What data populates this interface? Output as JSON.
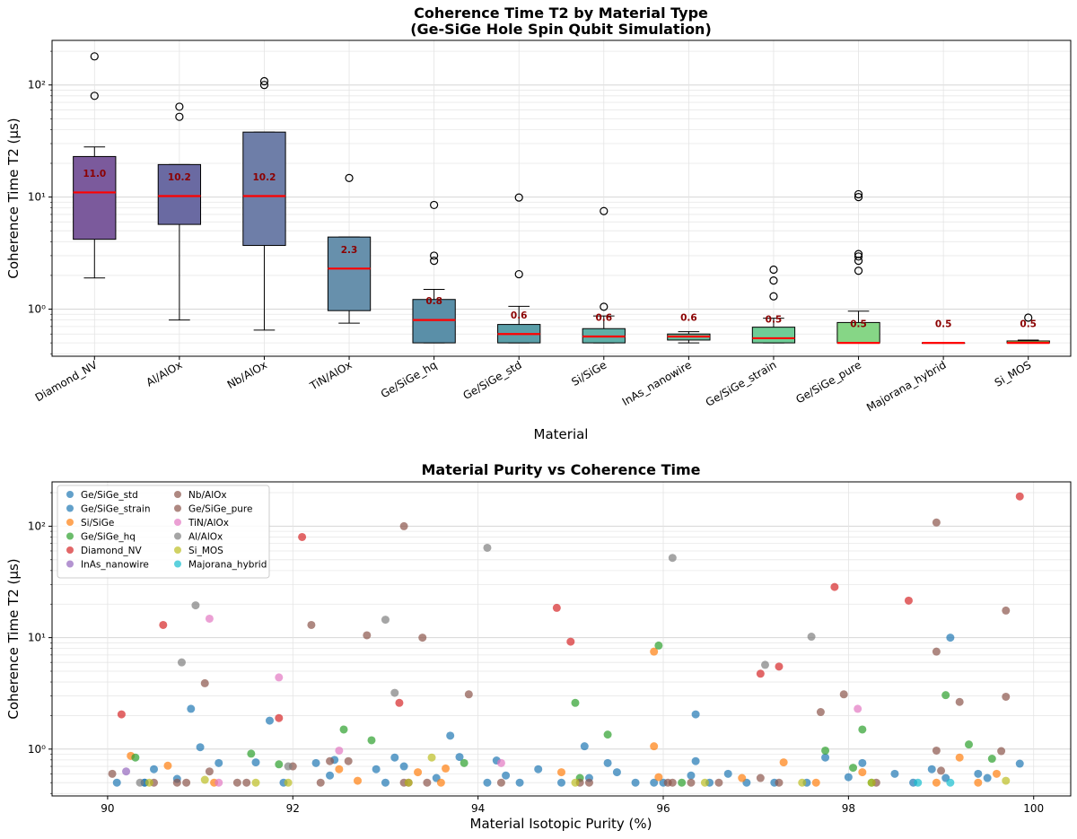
{
  "chart_data": [
    {
      "type": "box",
      "title": "Coherence Time T2 by Material Type",
      "subtitle": "(Ge-SiGe Hole Spin Qubit Simulation)",
      "xlabel": "Material",
      "ylabel": "Coherence Time T2 (μs)",
      "yscale": "log",
      "ylim": [
        0.38,
        250
      ],
      "yticks": [
        1,
        10,
        100
      ],
      "ytick_labels": [
        "10⁰",
        "10¹",
        "10²"
      ],
      "grid": true,
      "median_color": "#ff0000",
      "median_label_color": "#8b0000",
      "boxes": [
        {
          "category": "Diamond_NV",
          "q1": 4.2,
          "median": 11.0,
          "q3": 23,
          "whisker_low": 1.9,
          "whisker_high": 28,
          "outliers": [
            80,
            180
          ],
          "median_label": "11.0",
          "color": "#7b5a9c"
        },
        {
          "category": "Al/AlOx",
          "q1": 5.7,
          "median": 10.2,
          "q3": 19.5,
          "whisker_low": 0.8,
          "whisker_high": 19.5,
          "outliers": [
            52,
            64
          ],
          "median_label": "10.2",
          "color": "#6a6aa2"
        },
        {
          "category": "Nb/AlOx",
          "q1": 3.7,
          "median": 10.2,
          "q3": 38,
          "whisker_low": 0.65,
          "whisker_high": 38,
          "outliers": [
            100,
            108
          ],
          "median_label": "10.2",
          "color": "#6e7ea8"
        },
        {
          "category": "TiN/AlOx",
          "q1": 0.97,
          "median": 2.3,
          "q3": 4.4,
          "whisker_low": 0.75,
          "whisker_high": 4.4,
          "outliers": [
            14.8
          ],
          "median_label": "2.3",
          "color": "#6790ac"
        },
        {
          "category": "Ge/SiGe_hq",
          "q1": 0.5,
          "median": 0.8,
          "q3": 1.22,
          "whisker_low": 0.5,
          "whisker_high": 1.5,
          "outliers": [
            2.7,
            3.0,
            8.5
          ],
          "median_label": "0.8",
          "color": "#5a8fa8"
        },
        {
          "category": "Ge/SiGe_std",
          "q1": 0.5,
          "median": 0.6,
          "q3": 0.73,
          "whisker_low": 0.5,
          "whisker_high": 1.06,
          "outliers": [
            2.05,
            9.9
          ],
          "median_label": "0.6",
          "color": "#5a9ea8"
        },
        {
          "category": "Si/SiGe",
          "q1": 0.5,
          "median": 0.57,
          "q3": 0.67,
          "whisker_low": 0.5,
          "whisker_high": 0.87,
          "outliers": [
            1.05,
            7.5
          ],
          "median_label": "0.6",
          "color": "#5fb0a8"
        },
        {
          "category": "InAs_nanowire",
          "q1": 0.53,
          "median": 0.57,
          "q3": 0.6,
          "whisker_low": 0.5,
          "whisker_high": 0.63,
          "outliers": [],
          "median_label": "0.6",
          "color": "#66bea0"
        },
        {
          "category": "Ge/SiGe_strain",
          "q1": 0.5,
          "median": 0.55,
          "q3": 0.69,
          "whisker_low": 0.5,
          "whisker_high": 0.83,
          "outliers": [
            1.3,
            1.8,
            2.25
          ],
          "median_label": "0.5",
          "color": "#6fcc96"
        },
        {
          "category": "Ge/SiGe_pure",
          "q1": 0.5,
          "median": 0.5,
          "q3": 0.76,
          "whisker_low": 0.5,
          "whisker_high": 0.96,
          "outliers": [
            2.2,
            2.7,
            2.95,
            3.1,
            10.0,
            10.6
          ],
          "median_label": "0.5",
          "color": "#86d686"
        },
        {
          "category": "Majorana_hybrid",
          "q1": 0.5,
          "median": 0.5,
          "q3": 0.5,
          "whisker_low": 0.5,
          "whisker_high": 0.5,
          "outliers": [],
          "median_label": "0.5",
          "color": "#b5de6c"
        },
        {
          "category": "Si_MOS",
          "q1": 0.5,
          "median": 0.5,
          "q3": 0.52,
          "whisker_low": 0.5,
          "whisker_high": 0.53,
          "outliers": [
            0.84
          ],
          "median_label": "0.5",
          "color": "#dde05a"
        }
      ]
    },
    {
      "type": "scatter",
      "title": "Material Purity vs Coherence Time",
      "xlabel": "Material Isotopic Purity (%)",
      "ylabel": "Coherence Time T2 (μs)",
      "xlim": [
        89.4,
        100.4
      ],
      "xticks": [
        90,
        92,
        94,
        96,
        98,
        100
      ],
      "yscale": "log",
      "ylim": [
        0.38,
        250
      ],
      "yticks": [
        1,
        10,
        100
      ],
      "ytick_labels": [
        "10⁰",
        "10¹",
        "10²"
      ],
      "grid": true,
      "legend_position": "top-left",
      "legend_columns": 2,
      "series": [
        {
          "name": "Ge/SiGe_std",
          "color": "#1f77b4",
          "points": [
            [
              90.4,
              0.5
            ],
            [
              90.5,
              0.66
            ],
            [
              90.75,
              0.54
            ],
            [
              91.2,
              0.75
            ],
            [
              91.6,
              0.76
            ],
            [
              92.25,
              0.75
            ],
            [
              92.4,
              0.58
            ],
            [
              92.9,
              0.66
            ],
            [
              93.1,
              0.84
            ],
            [
              93.55,
              0.55
            ],
            [
              93.7,
              1.32
            ],
            [
              94.2,
              0.79
            ],
            [
              94.3,
              0.58
            ],
            [
              94.65,
              0.66
            ],
            [
              95.15,
              1.06
            ],
            [
              95.5,
              0.62
            ],
            [
              96.3,
              0.58
            ],
            [
              96.35,
              0.78
            ],
            [
              96.7,
              0.6
            ],
            [
              97.2,
              0.5
            ],
            [
              98.0,
              0.56
            ],
            [
              98.5,
              0.6
            ],
            [
              98.9,
              0.66
            ],
            [
              99.4,
              0.6
            ],
            [
              99.85,
              0.74
            ],
            [
              95.9,
              0.5
            ],
            [
              93.0,
              0.5
            ],
            [
              91.0,
              1.04
            ]
          ]
        },
        {
          "name": "Ge/SiGe_strain",
          "color": "#1f77b4",
          "points": [
            [
              90.1,
              0.5
            ],
            [
              90.4,
              0.5
            ],
            [
              90.9,
              2.3
            ],
            [
              91.75,
              1.8
            ],
            [
              91.9,
              0.5
            ],
            [
              92.45,
              0.8
            ],
            [
              93.2,
              0.7
            ],
            [
              93.8,
              0.85
            ],
            [
              94.1,
              0.5
            ],
            [
              94.45,
              0.5
            ],
            [
              94.9,
              0.5
            ],
            [
              95.4,
              0.75
            ],
            [
              95.7,
              0.5
            ],
            [
              96.0,
              0.5
            ],
            [
              96.35,
              2.05
            ],
            [
              96.9,
              0.5
            ],
            [
              97.55,
              0.5
            ],
            [
              97.75,
              0.84
            ],
            [
              98.15,
              0.75
            ],
            [
              98.7,
              0.5
            ],
            [
              99.05,
              0.55
            ],
            [
              99.1,
              10.0
            ],
            [
              99.5,
              0.55
            ],
            [
              96.5,
              0.5
            ],
            [
              95.2,
              0.55
            ]
          ]
        },
        {
          "name": "Si/SiGe",
          "color": "#ff7f0e",
          "points": [
            [
              90.25,
              0.87
            ],
            [
              90.65,
              0.71
            ],
            [
              91.15,
              0.5
            ],
            [
              92.5,
              0.66
            ],
            [
              92.7,
              0.52
            ],
            [
              93.35,
              0.62
            ],
            [
              93.65,
              0.67
            ],
            [
              94.9,
              0.62
            ],
            [
              95.9,
              1.06
            ],
            [
              95.95,
              0.56
            ],
            [
              95.9,
              7.5
            ],
            [
              96.85,
              0.55
            ],
            [
              97.3,
              0.76
            ],
            [
              97.65,
              0.5
            ],
            [
              98.15,
              0.62
            ],
            [
              98.95,
              0.5
            ],
            [
              99.2,
              0.84
            ],
            [
              99.6,
              0.6
            ],
            [
              99.4,
              0.5
            ],
            [
              93.6,
              0.5
            ]
          ]
        },
        {
          "name": "Ge/SiGe_hq",
          "color": "#2ca02c",
          "points": [
            [
              90.3,
              0.84
            ],
            [
              91.55,
              0.91
            ],
            [
              91.85,
              0.73
            ],
            [
              92.55,
              1.5
            ],
            [
              92.85,
              1.2
            ],
            [
              93.85,
              0.75
            ],
            [
              95.05,
              2.6
            ],
            [
              95.1,
              0.55
            ],
            [
              95.4,
              1.35
            ],
            [
              95.95,
              8.5
            ],
            [
              97.75,
              0.97
            ],
            [
              98.05,
              0.68
            ],
            [
              98.15,
              1.5
            ],
            [
              99.05,
              3.05
            ],
            [
              99.3,
              1.1
            ],
            [
              99.55,
              0.82
            ],
            [
              98.25,
              0.5
            ],
            [
              96.2,
              0.5
            ]
          ]
        },
        {
          "name": "Diamond_NV",
          "color": "#d62728",
          "points": [
            [
              90.15,
              2.05
            ],
            [
              90.6,
              13
            ],
            [
              91.85,
              1.9
            ],
            [
              92.1,
              80
            ],
            [
              93.15,
              2.6
            ],
            [
              94.85,
              18.5
            ],
            [
              95.0,
              9.2
            ],
            [
              97.05,
              4.75
            ],
            [
              97.25,
              5.5
            ],
            [
              97.85,
              28.5
            ],
            [
              98.65,
              21.5
            ],
            [
              99.85,
              185
            ]
          ]
        },
        {
          "name": "InAs_nanowire",
          "color": "#9467bd",
          "points": [
            [
              90.2,
              0.63
            ]
          ]
        },
        {
          "name": "Nb/AlOx",
          "color": "#8c564b",
          "points": [
            [
              90.05,
              0.6
            ],
            [
              90.75,
              0.5
            ],
            [
              91.05,
              3.9
            ],
            [
              91.1,
              0.63
            ],
            [
              91.5,
              0.5
            ],
            [
              92.2,
              13
            ],
            [
              92.4,
              0.78
            ],
            [
              92.6,
              0.78
            ],
            [
              92.8,
              10.5
            ],
            [
              93.2,
              0.5
            ],
            [
              93.2,
              100
            ],
            [
              93.4,
              10.0
            ],
            [
              93.9,
              3.1
            ],
            [
              95.1,
              0.5
            ],
            [
              96.05,
              0.5
            ],
            [
              96.3,
              0.5
            ],
            [
              97.05,
              0.55
            ],
            [
              97.7,
              2.15
            ],
            [
              98.95,
              108
            ],
            [
              98.95,
              0.97
            ],
            [
              99.2,
              2.65
            ],
            [
              99.65,
              0.96
            ],
            [
              99.7,
              17.5
            ],
            [
              97.95,
              3.1
            ]
          ]
        },
        {
          "name": "Ge/SiGe_pure",
          "color": "#8c564b",
          "points": [
            [
              90.5,
              0.5
            ],
            [
              90.85,
              0.5
            ],
            [
              91.4,
              0.5
            ],
            [
              92.0,
              0.7
            ],
            [
              92.3,
              0.5
            ],
            [
              93.25,
              0.5
            ],
            [
              93.45,
              0.5
            ],
            [
              94.25,
              0.5
            ],
            [
              95.2,
              0.5
            ],
            [
              96.6,
              0.5
            ],
            [
              97.25,
              0.5
            ],
            [
              98.3,
              0.5
            ],
            [
              98.95,
              7.5
            ],
            [
              99.0,
              0.64
            ],
            [
              99.7,
              2.95
            ],
            [
              96.1,
              0.5
            ]
          ]
        },
        {
          "name": "TiN/AlOx",
          "color": "#e377c2",
          "points": [
            [
              91.1,
              14.8
            ],
            [
              91.85,
              4.4
            ],
            [
              92.5,
              0.97
            ],
            [
              94.25,
              0.75
            ],
            [
              98.1,
              2.3
            ],
            [
              91.2,
              0.5
            ]
          ]
        },
        {
          "name": "Al/AlOx",
          "color": "#7f7f7f",
          "points": [
            [
              90.8,
              6.0
            ],
            [
              90.95,
              19.5
            ],
            [
              93.0,
              14.5
            ],
            [
              93.1,
              3.2
            ],
            [
              94.1,
              64
            ],
            [
              96.1,
              52
            ],
            [
              97.1,
              5.7
            ],
            [
              97.6,
              10.2
            ],
            [
              91.95,
              0.7
            ],
            [
              90.35,
              0.5
            ]
          ]
        },
        {
          "name": "Si_MOS",
          "color": "#bcbd22",
          "points": [
            [
              90.45,
              0.5
            ],
            [
              91.05,
              0.53
            ],
            [
              91.6,
              0.5
            ],
            [
              91.95,
              0.5
            ],
            [
              93.25,
              0.5
            ],
            [
              93.5,
              0.84
            ],
            [
              95.05,
              0.5
            ],
            [
              96.45,
              0.5
            ],
            [
              98.25,
              0.5
            ],
            [
              99.7,
              0.52
            ],
            [
              97.5,
              0.5
            ]
          ]
        },
        {
          "name": "Majorana_hybrid",
          "color": "#17becf",
          "points": [
            [
              98.75,
              0.5
            ],
            [
              99.1,
              0.5
            ]
          ]
        }
      ]
    }
  ]
}
